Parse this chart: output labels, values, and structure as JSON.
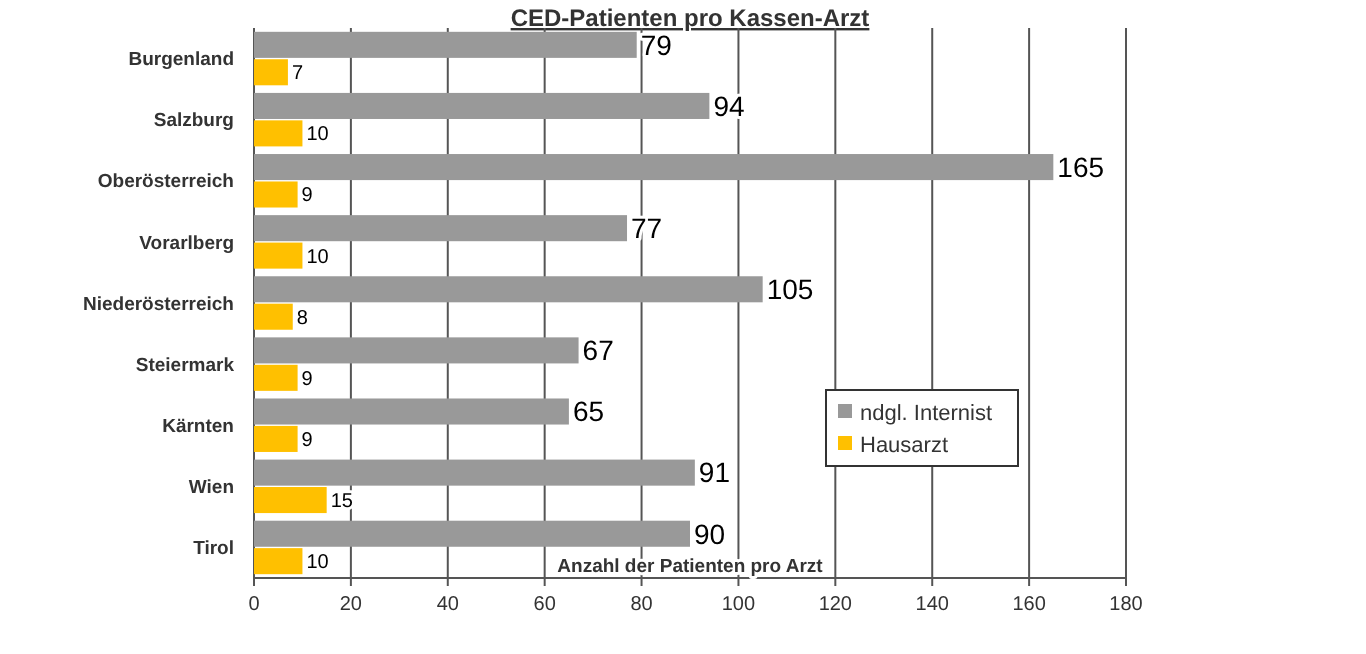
{
  "chart_data": {
    "type": "bar",
    "orientation": "horizontal",
    "title": "CED-Patienten pro Kassen-Arzt",
    "xlabel": "Anzahl der Patienten pro Arzt",
    "categories": [
      "Burgenland",
      "Salzburg",
      "Oberösterreich",
      "Vorarlberg",
      "Niederösterreich",
      "Steiermark",
      "Kärnten",
      "Wien",
      "Tirol"
    ],
    "series": [
      {
        "name": "ndgl. Internist",
        "color": "#999999",
        "values": [
          79,
          94,
          165,
          77,
          105,
          67,
          65,
          91,
          90
        ]
      },
      {
        "name": "Hausarzt",
        "color": "#ffc000",
        "values": [
          7,
          10,
          9,
          10,
          8,
          9,
          9,
          15,
          10
        ]
      }
    ],
    "xlim": [
      0,
      180
    ],
    "xticks": [
      0,
      20,
      40,
      60,
      80,
      100,
      120,
      140,
      160,
      180
    ],
    "grid": "x",
    "legend": "right",
    "data_labels": true
  }
}
